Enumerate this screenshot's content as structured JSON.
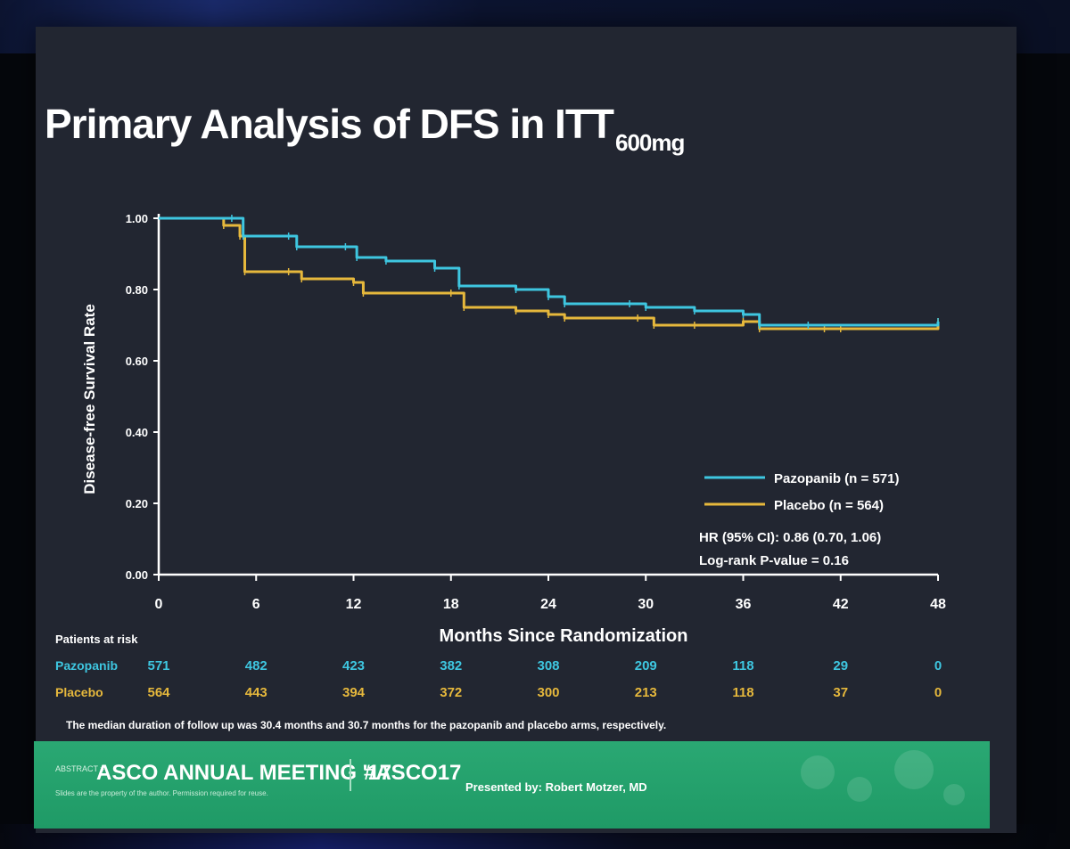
{
  "slide": {
    "title": "Primary Analysis of DFS in ITT",
    "title_subscript": "600mg",
    "footnote": "The median duration of follow up was 30.4 months and 30.7 months for the pazopanib and placebo arms, respectively.",
    "footer": {
      "meeting": "ASCO ANNUAL MEETING '17",
      "hashtag": "#ASCO17",
      "presenter": "Presented by: Robert Motzer, MD",
      "meeting_small": "ABSTRACT #",
      "permission_note": "Slides are the property of the author. Permission required for reuse."
    }
  },
  "chart_data": {
    "type": "line",
    "title": "",
    "xlabel": "Months Since Randomization",
    "ylabel": "Disease-free Survival Rate",
    "xlim": [
      0,
      48
    ],
    "ylim": [
      0,
      1
    ],
    "x_ticks": [
      0,
      6,
      12,
      18,
      24,
      30,
      36,
      42,
      48
    ],
    "y_ticks": [
      "0.00",
      "0.20",
      "0.40",
      "0.60",
      "0.80",
      "1.00"
    ],
    "grid": false,
    "legend_position": "bottom-right",
    "series": [
      {
        "name": "Pazopanib (n = 571)",
        "color": "#3ec6e0",
        "points": [
          [
            0,
            1.0
          ],
          [
            4.5,
            1.0
          ],
          [
            5.2,
            0.95
          ],
          [
            8,
            0.95
          ],
          [
            8.5,
            0.92
          ],
          [
            11.5,
            0.92
          ],
          [
            12.2,
            0.89
          ],
          [
            14,
            0.88
          ],
          [
            17,
            0.86
          ],
          [
            18.5,
            0.81
          ],
          [
            22,
            0.8
          ],
          [
            24,
            0.78
          ],
          [
            25,
            0.76
          ],
          [
            29,
            0.76
          ],
          [
            30,
            0.75
          ],
          [
            33,
            0.74
          ],
          [
            36,
            0.73
          ],
          [
            37,
            0.7
          ],
          [
            40,
            0.7
          ],
          [
            48,
            0.71
          ]
        ]
      },
      {
        "name": "Placebo (n = 564)",
        "color": "#e6b83c",
        "points": [
          [
            0,
            1.0
          ],
          [
            4,
            0.98
          ],
          [
            5,
            0.95
          ],
          [
            5.3,
            0.85
          ],
          [
            8,
            0.85
          ],
          [
            8.8,
            0.83
          ],
          [
            12,
            0.82
          ],
          [
            12.6,
            0.79
          ],
          [
            18,
            0.79
          ],
          [
            18.8,
            0.75
          ],
          [
            22,
            0.74
          ],
          [
            24,
            0.73
          ],
          [
            25,
            0.72
          ],
          [
            29.5,
            0.72
          ],
          [
            30.5,
            0.7
          ],
          [
            33,
            0.7
          ],
          [
            36,
            0.71
          ],
          [
            37,
            0.69
          ],
          [
            41,
            0.69
          ],
          [
            42,
            0.69
          ],
          [
            48,
            0.71
          ]
        ]
      }
    ],
    "annotations": [
      "HR (95% CI): 0.86 (0.70, 1.06)",
      "Log-rank P-value = 0.16"
    ],
    "at_risk": {
      "header": "Patients at risk",
      "rows": [
        {
          "label": "Pazopanib",
          "color": "#3ec6e0",
          "values": [
            "571",
            "482",
            "423",
            "382",
            "308",
            "209",
            "118",
            "29",
            "0"
          ]
        },
        {
          "label": "Placebo",
          "color": "#e6b83c",
          "values": [
            "564",
            "443",
            "394",
            "372",
            "300",
            "213",
            "118",
            "37",
            "0"
          ]
        }
      ]
    }
  }
}
